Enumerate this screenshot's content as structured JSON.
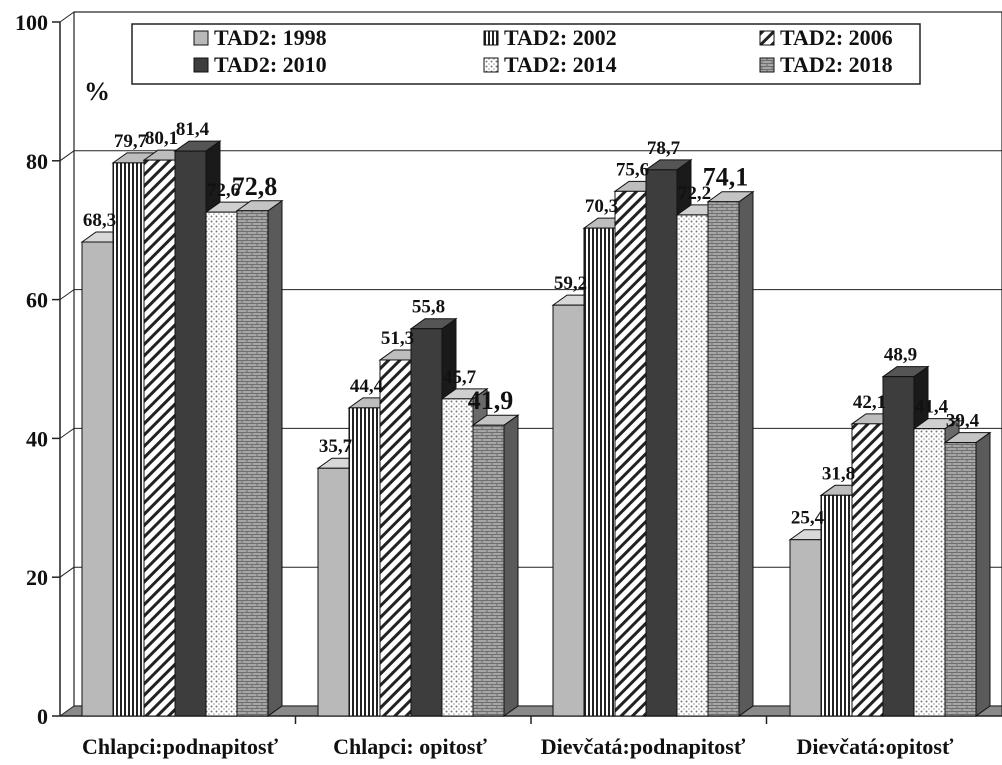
{
  "chart_data": {
    "type": "bar",
    "ylabel": "%",
    "ylim": [
      0,
      100
    ],
    "yticks": [
      "0",
      "20",
      "40",
      "60",
      "80",
      "100"
    ],
    "grid": true,
    "legend_position": "top",
    "categories": [
      "Chlapci:podnapitosť",
      "Chlapci: opitosť",
      "Dievčatá:podnapitosť",
      "Dievčatá:opitosť"
    ],
    "series": [
      {
        "name": "TAD2: 1998",
        "pattern": "solid-light",
        "values": [
          68.3,
          35.7,
          59.2,
          25.4
        ],
        "labels": [
          "68,3",
          "35,7",
          "59,2",
          "25,4"
        ]
      },
      {
        "name": "TAD2: 2002",
        "pattern": "vertical-lines",
        "values": [
          79.7,
          44.4,
          70.3,
          31.8
        ],
        "labels": [
          "79,7",
          "44,4",
          "70,3",
          "31,8"
        ]
      },
      {
        "name": "TAD2: 2006",
        "pattern": "diagonal-hatch",
        "values": [
          80.1,
          51.3,
          75.6,
          42.1
        ],
        "labels": [
          "80,1",
          "51,3",
          "75,6",
          "42,1"
        ]
      },
      {
        "name": "TAD2: 2010",
        "pattern": "solid-dark",
        "values": [
          81.4,
          55.8,
          78.7,
          48.9
        ],
        "labels": [
          "81,4",
          "55,8",
          "78,7",
          "48,9"
        ]
      },
      {
        "name": "TAD2: 2014",
        "pattern": "dots",
        "values": [
          72.6,
          45.7,
          72.2,
          41.4
        ],
        "labels": [
          "72,6",
          "45,7",
          "72,2",
          "41,4"
        ]
      },
      {
        "name": "TAD2: 2018",
        "pattern": "brick",
        "values": [
          72.8,
          41.9,
          74.1,
          39.4
        ],
        "labels": [
          "72,8",
          "41,9",
          "74,1",
          "39,4"
        ]
      }
    ]
  }
}
